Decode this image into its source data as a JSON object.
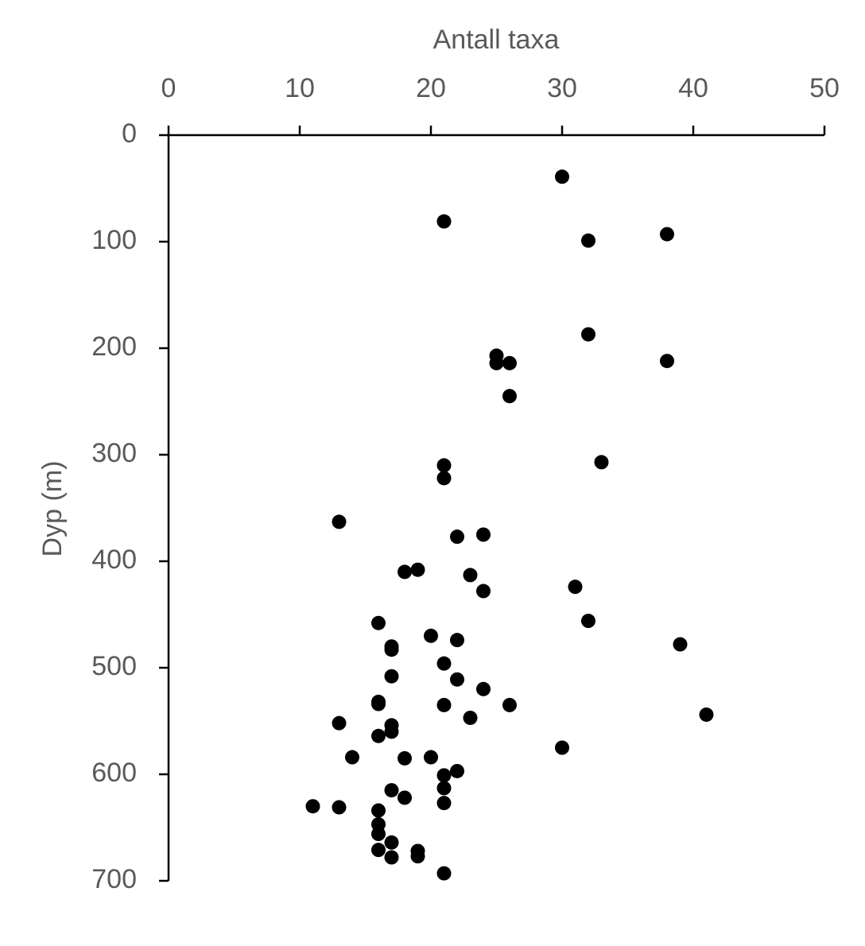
{
  "chart_data": {
    "type": "scatter",
    "x_label": "Antall taxa",
    "y_label": "Dyp (m)",
    "x_axis_position": "top",
    "y_inverted": true,
    "color": "#000000",
    "xlim": [
      0,
      50
    ],
    "xticks": [
      0,
      10,
      20,
      30,
      40,
      50
    ],
    "ylim": [
      0,
      700
    ],
    "yticks": [
      0,
      100,
      200,
      300,
      400,
      500,
      600,
      700
    ],
    "x": [
      30,
      21,
      38,
      32,
      32,
      25,
      25,
      26,
      38,
      26,
      21,
      33,
      21,
      13,
      22,
      24,
      18,
      19,
      23,
      31,
      24,
      32,
      16,
      20,
      22,
      39,
      17,
      17,
      21,
      17,
      22,
      24,
      16,
      16,
      21,
      26,
      41,
      23,
      13,
      17,
      17,
      16,
      30,
      14,
      18,
      20,
      22,
      21,
      21,
      17,
      18,
      21,
      11,
      13,
      16,
      16,
      16,
      17,
      16,
      19,
      19,
      17,
      21
    ],
    "y": [
      39,
      81,
      93,
      99,
      187,
      207,
      214,
      214,
      212,
      245,
      310,
      307,
      322,
      363,
      377,
      375,
      410,
      408,
      413,
      424,
      428,
      456,
      458,
      470,
      474,
      478,
      480,
      483,
      496,
      508,
      511,
      520,
      532,
      534,
      535,
      535,
      544,
      547,
      552,
      554,
      560,
      564,
      575,
      584,
      585,
      584,
      597,
      601,
      613,
      615,
      622,
      627,
      630,
      631,
      634,
      647,
      656,
      664,
      671,
      672,
      677,
      678,
      693
    ]
  }
}
